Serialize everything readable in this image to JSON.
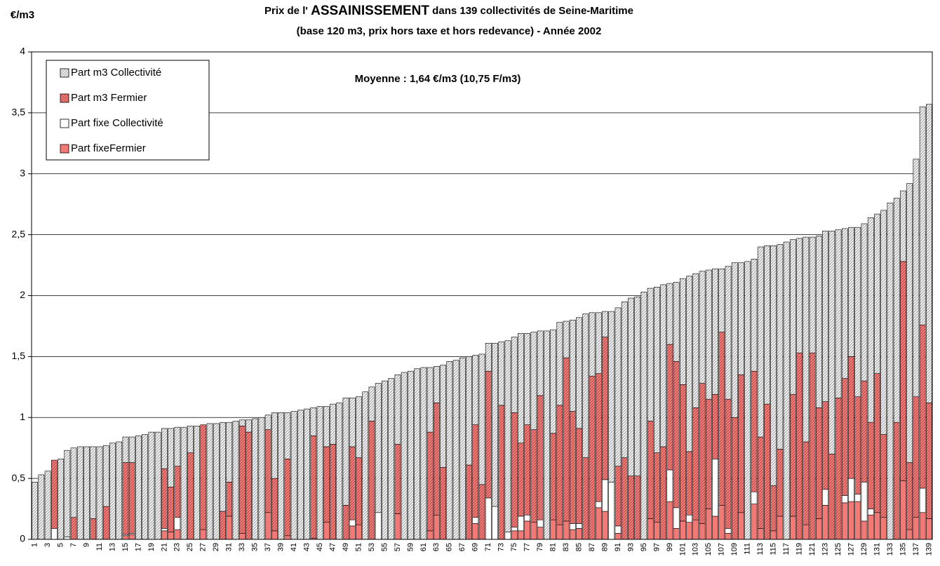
{
  "chart_data": {
    "type": "stacked_bar",
    "title": [
      "Prix de l' ",
      "ASSAINISSEMENT",
      " dans 139 collectivités de Seine-Maritime"
    ],
    "subtitle": "(base 120 m3, prix hors taxe et hors redevance) - Année 2002",
    "y_label": "€/m3",
    "annotation": "Moyenne : 1,64 €/m3 (10,75 F/m3)",
    "grid": true,
    "legend": "top-left",
    "ylim": [
      0,
      4
    ],
    "yticks": [
      0,
      {
        "value": 0.5,
        "label": "0,5"
      },
      1,
      {
        "value": 1.5,
        "label": "1,5"
      },
      2,
      {
        "value": 2.5,
        "label": "2,5"
      },
      3,
      {
        "value": 3.5,
        "label": "3,5"
      },
      4
    ],
    "categories": [
      1,
      null,
      3,
      null,
      5,
      null,
      7,
      null,
      9,
      null,
      11,
      null,
      13,
      null,
      15,
      null,
      17,
      null,
      19,
      null,
      21,
      null,
      23,
      null,
      25,
      null,
      27,
      null,
      29,
      null,
      31,
      null,
      33,
      null,
      35,
      null,
      37,
      null,
      39,
      null,
      41,
      null,
      43,
      null,
      45,
      null,
      47,
      null,
      49,
      null,
      51,
      null,
      53,
      null,
      55,
      null,
      57,
      null,
      59,
      null,
      61,
      null,
      63,
      null,
      65,
      null,
      67,
      null,
      69,
      null,
      71,
      null,
      73,
      null,
      75,
      null,
      77,
      null,
      79,
      null,
      81,
      null,
      83,
      null,
      85,
      null,
      87,
      null,
      89,
      null,
      91,
      null,
      93,
      null,
      95,
      null,
      97,
      null,
      99,
      null,
      101,
      null,
      103,
      null,
      105,
      null,
      107,
      null,
      109,
      null,
      111,
      null,
      113,
      null,
      115,
      null,
      117,
      null,
      119,
      null,
      121,
      null,
      123,
      null,
      125,
      null,
      127,
      null,
      129,
      null,
      131,
      null,
      133,
      null,
      135,
      null,
      137,
      null,
      139
    ],
    "series": [
      {
        "name": "Part fixeFermier",
        "color": "#f27a76",
        "hatched": false,
        "values": [
          0,
          0,
          0,
          0,
          0,
          0,
          0,
          0,
          0,
          0,
          0,
          0,
          0,
          0,
          0.03,
          0.04,
          0,
          0,
          0,
          0,
          0.07,
          0.06,
          0.08,
          0,
          0,
          0,
          0.08,
          0,
          0,
          0,
          0.19,
          0,
          0.05,
          0,
          0,
          0,
          0.22,
          0.07,
          0,
          0.03,
          0,
          0,
          0,
          0.01,
          0,
          0.14,
          0,
          0,
          0,
          0.11,
          0.12,
          0,
          0,
          0,
          0,
          0,
          0.21,
          0,
          0,
          0,
          0,
          0.07,
          0.2,
          0,
          0,
          0,
          0,
          0,
          0.13,
          0,
          0,
          0,
          0,
          0,
          0.07,
          0.07,
          0.15,
          0.14,
          0.1,
          0,
          0.16,
          0.12,
          0.15,
          0.08,
          0.09,
          0,
          0,
          0.26,
          0.23,
          0,
          0.05,
          0,
          0,
          0,
          0,
          0.17,
          0.14,
          0,
          0.31,
          0.09,
          0.15,
          0.14,
          0.16,
          0.13,
          0.25,
          0.19,
          0.28,
          0.05,
          0,
          0.22,
          0,
          0.29,
          0.09,
          0,
          0.07,
          0.19,
          0,
          0.19,
          0,
          0.12,
          0,
          0.17,
          0.28,
          0,
          0,
          0.3,
          0.31,
          0.31,
          0.15,
          0.2,
          0.22,
          0.18,
          0,
          0,
          0.48,
          0.08,
          0.18,
          0.22,
          0.17
        ]
      },
      {
        "name": "Part fixe Collectivité",
        "color": "#ffffff",
        "hatched": false,
        "values": [
          0,
          0,
          0,
          0.09,
          0,
          0.02,
          0,
          0,
          0,
          0,
          0,
          0,
          0,
          0,
          0.01,
          0.01,
          0,
          0,
          0,
          0,
          0.02,
          0,
          0.1,
          0,
          0,
          0,
          0,
          0,
          0,
          0,
          0,
          0,
          0,
          0,
          0,
          0,
          0,
          0,
          0,
          0,
          0,
          0,
          0,
          0,
          0,
          0,
          0,
          0,
          0,
          0.05,
          0,
          0,
          0,
          0.22,
          0,
          0,
          0,
          0,
          0,
          0,
          0,
          0,
          0,
          0,
          0,
          0,
          0,
          0,
          0.05,
          0,
          0.34,
          0.27,
          0,
          0.06,
          0.03,
          0.12,
          0.05,
          0,
          0.06,
          0,
          0,
          0,
          0,
          0.05,
          0.04,
          0,
          0,
          0.05,
          0.26,
          0.47,
          0.06,
          0,
          0,
          0,
          0,
          0,
          0,
          0,
          0.26,
          0.17,
          0,
          0.06,
          0,
          0,
          0,
          0.47,
          0,
          0.04,
          0,
          0,
          0,
          0.1,
          0,
          0,
          0,
          0,
          0,
          0,
          0,
          0,
          0,
          0,
          0.13,
          0,
          0,
          0.06,
          0.19,
          0.06,
          0.32,
          0.05,
          0,
          0,
          0,
          0,
          0,
          0,
          0,
          0.2,
          0
        ]
      },
      {
        "name": "Part m3 Fermier",
        "color": "#f27a76",
        "hatched": true,
        "values": [
          0,
          0,
          0,
          0.56,
          0,
          0,
          0.18,
          0,
          0,
          0.17,
          0,
          0.27,
          0,
          0,
          0.59,
          0.58,
          0,
          0,
          0,
          0,
          0.49,
          0.37,
          0.42,
          0,
          0.71,
          0,
          0.86,
          0,
          0,
          0.23,
          0.28,
          0,
          0.88,
          0.88,
          0,
          0,
          0.68,
          0.43,
          0,
          0.63,
          0,
          0,
          0,
          0.84,
          0,
          0.62,
          0.78,
          0,
          0.28,
          0.6,
          0.55,
          0,
          0.97,
          0,
          0,
          0,
          0.57,
          0,
          0,
          0,
          0,
          0.81,
          0.92,
          0.59,
          0,
          0,
          0,
          0.61,
          0.76,
          0.45,
          1.04,
          0,
          1.1,
          0,
          0.94,
          0.6,
          0.74,
          0.76,
          1.02,
          0,
          0.71,
          0.98,
          1.34,
          0.92,
          0.78,
          0.67,
          1.34,
          1.05,
          1.17,
          0,
          0.49,
          0.67,
          0.52,
          0.52,
          0,
          0.8,
          0.57,
          0.76,
          1.03,
          1.2,
          1.12,
          0.52,
          0.92,
          1.15,
          0.9,
          0.53,
          1.42,
          1.06,
          1,
          1.13,
          0,
          0.99,
          0.75,
          1.11,
          0.37,
          0.55,
          0,
          1,
          1.53,
          0.68,
          1.53,
          0.91,
          0.72,
          0.7,
          1.16,
          0.96,
          1,
          0.8,
          0.83,
          0.71,
          1.14,
          0.68,
          0,
          0.96,
          1.8,
          0.55,
          0.99,
          1.34,
          0.95
        ]
      },
      {
        "name": "Part m3 Collectivité",
        "color": "#eeeeee",
        "hatched": true,
        "values": [
          0.47,
          0.53,
          0.56,
          0,
          0.66,
          0.71,
          0.57,
          0.76,
          0.76,
          0.59,
          0.76,
          0.5,
          0.79,
          0.8,
          0.21,
          0.21,
          0.85,
          0.86,
          0.88,
          0.88,
          0.33,
          0.48,
          0.32,
          0.92,
          0.22,
          0.93,
          0,
          0.95,
          0.95,
          0.73,
          0.49,
          0.97,
          0.05,
          0.1,
          0.99,
          1,
          0.12,
          0.54,
          1.04,
          0.38,
          1.05,
          1.06,
          1.07,
          0.23,
          1.09,
          0.33,
          0.33,
          1.12,
          0.88,
          0.4,
          0.5,
          1.21,
          0.28,
          1.06,
          1.3,
          1.32,
          0.57,
          1.37,
          1.38,
          1.4,
          1.41,
          0.53,
          0.3,
          0.84,
          1.46,
          1.47,
          1.49,
          0.89,
          0.57,
          1.07,
          0.23,
          1.34,
          0.52,
          1.57,
          0.62,
          0.9,
          0.75,
          0.8,
          0.53,
          1.71,
          0.85,
          0.68,
          0.3,
          0.75,
          0.91,
          1.18,
          0.52,
          0.5,
          0.21,
          1.4,
          1.3,
          1.28,
          1.46,
          1.47,
          2.03,
          1.09,
          1.36,
          1.33,
          0.5,
          0.65,
          0.87,
          1.44,
          1.1,
          0.92,
          1.06,
          1.03,
          0.52,
          1.09,
          1.27,
          0.92,
          2.28,
          0.92,
          1.56,
          1.3,
          1.97,
          1.68,
          2.44,
          1.27,
          0.94,
          1.68,
          0.95,
          1.41,
          1.4,
          1.83,
          1.38,
          1.23,
          1.06,
          1.39,
          1.29,
          1.68,
          1.31,
          1.84,
          2.76,
          1.84,
          0.58,
          2.29,
          1.95,
          1.79,
          2.45
        ]
      }
    ]
  }
}
